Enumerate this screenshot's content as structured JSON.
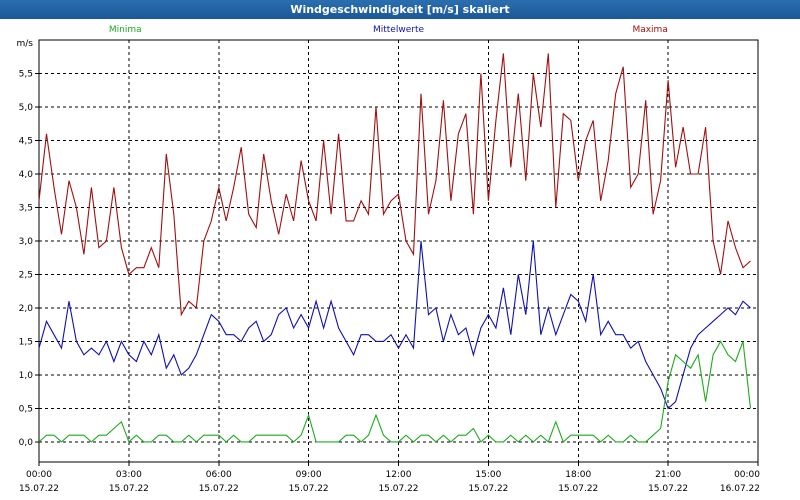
{
  "window": {
    "title": "Windgeschwindigkeit [m/s] skaliert"
  },
  "colors": {
    "min": "#1faa1f",
    "avg": "#1010b0",
    "max": "#a01010",
    "grid": "#000000"
  },
  "chart_data": {
    "type": "line",
    "title": "Windgeschwindigkeit [m/s] skaliert",
    "ylabel": "m/s",
    "xlabel": "",
    "ylim": [
      -0.3,
      6.0
    ],
    "yticks": [
      "0,0",
      "0,5",
      "1,0",
      "1,5",
      "2,0",
      "2,5",
      "3,0",
      "3,5",
      "4,0",
      "4,5",
      "5,0",
      "5,5"
    ],
    "ytick_values": [
      0,
      0.5,
      1,
      1.5,
      2,
      2.5,
      3,
      3.5,
      4,
      4.5,
      5,
      5.5
    ],
    "xlim_hours": [
      0,
      24
    ],
    "xticks": [
      {
        "time": "00:00",
        "date": "15.07.22"
      },
      {
        "time": "03:00",
        "date": "15.07.22"
      },
      {
        "time": "06:00",
        "date": "15.07.22"
      },
      {
        "time": "09:00",
        "date": "15.07.22"
      },
      {
        "time": "12:00",
        "date": "15.07.22"
      },
      {
        "time": "15:00",
        "date": "15.07.22"
      },
      {
        "time": "18:00",
        "date": "15.07.22"
      },
      {
        "time": "21:00",
        "date": "15.07.22"
      },
      {
        "time": "00:00",
        "date": "16.07.22"
      }
    ],
    "grid": true,
    "legend": [
      "Minima",
      "Mittelwerte",
      "Maxima"
    ],
    "series": [
      {
        "name": "Maxima",
        "key": "max",
        "points": [
          [
            0,
            3.6
          ],
          [
            0.25,
            4.6
          ],
          [
            0.5,
            3.8
          ],
          [
            0.75,
            3.1
          ],
          [
            1,
            3.9
          ],
          [
            1.25,
            3.5
          ],
          [
            1.5,
            2.8
          ],
          [
            1.75,
            3.8
          ],
          [
            2,
            2.9
          ],
          [
            2.25,
            3.0
          ],
          [
            2.5,
            3.8
          ],
          [
            2.75,
            2.9
          ],
          [
            3,
            2.5
          ],
          [
            3.25,
            2.6
          ],
          [
            3.5,
            2.6
          ],
          [
            3.75,
            2.9
          ],
          [
            4,
            2.6
          ],
          [
            4.25,
            4.3
          ],
          [
            4.5,
            3.4
          ],
          [
            4.75,
            1.9
          ],
          [
            5,
            2.1
          ],
          [
            5.25,
            2.0
          ],
          [
            5.5,
            3.0
          ],
          [
            5.75,
            3.3
          ],
          [
            6,
            3.8
          ],
          [
            6.25,
            3.3
          ],
          [
            6.5,
            3.8
          ],
          [
            6.75,
            4.4
          ],
          [
            7,
            3.4
          ],
          [
            7.25,
            3.2
          ],
          [
            7.5,
            4.3
          ],
          [
            7.75,
            3.6
          ],
          [
            8,
            3.1
          ],
          [
            8.25,
            3.7
          ],
          [
            8.5,
            3.3
          ],
          [
            8.75,
            4.2
          ],
          [
            9,
            3.6
          ],
          [
            9.25,
            3.3
          ],
          [
            9.5,
            4.5
          ],
          [
            9.75,
            3.4
          ],
          [
            10,
            4.6
          ],
          [
            10.25,
            3.3
          ],
          [
            10.5,
            3.3
          ],
          [
            10.75,
            3.6
          ],
          [
            11,
            3.4
          ],
          [
            11.25,
            5.0
          ],
          [
            11.5,
            3.4
          ],
          [
            11.75,
            3.6
          ],
          [
            12,
            3.7
          ],
          [
            12.25,
            3.0
          ],
          [
            12.5,
            2.8
          ],
          [
            12.75,
            5.2
          ],
          [
            13,
            3.4
          ],
          [
            13.25,
            3.9
          ],
          [
            13.5,
            5.1
          ],
          [
            13.75,
            3.6
          ],
          [
            14,
            4.6
          ],
          [
            14.25,
            4.9
          ],
          [
            14.5,
            3.4
          ],
          [
            14.75,
            5.5
          ],
          [
            15,
            3.6
          ],
          [
            15.25,
            4.8
          ],
          [
            15.5,
            5.8
          ],
          [
            15.75,
            4.1
          ],
          [
            16,
            5.2
          ],
          [
            16.25,
            3.9
          ],
          [
            16.5,
            5.5
          ],
          [
            16.75,
            4.7
          ],
          [
            17,
            5.8
          ],
          [
            17.25,
            3.5
          ],
          [
            17.5,
            4.9
          ],
          [
            17.75,
            4.8
          ],
          [
            18,
            3.9
          ],
          [
            18.25,
            4.5
          ],
          [
            18.5,
            4.8
          ],
          [
            18.75,
            3.6
          ],
          [
            19,
            4.2
          ],
          [
            19.25,
            5.2
          ],
          [
            19.5,
            5.6
          ],
          [
            19.75,
            3.8
          ],
          [
            20,
            4.0
          ],
          [
            20.25,
            5.1
          ],
          [
            20.5,
            3.4
          ],
          [
            20.75,
            3.9
          ],
          [
            21,
            5.4
          ],
          [
            21.25,
            4.1
          ],
          [
            21.5,
            4.7
          ],
          [
            21.75,
            4.0
          ],
          [
            22,
            4.0
          ],
          [
            22.25,
            4.7
          ],
          [
            22.5,
            3.0
          ],
          [
            22.75,
            2.5
          ],
          [
            23,
            3.3
          ],
          [
            23.25,
            2.9
          ],
          [
            23.5,
            2.6
          ],
          [
            23.75,
            2.7
          ]
        ]
      },
      {
        "name": "Mittelwerte",
        "key": "avg",
        "points": [
          [
            0,
            1.4
          ],
          [
            0.25,
            1.8
          ],
          [
            0.5,
            1.6
          ],
          [
            0.75,
            1.4
          ],
          [
            1,
            2.1
          ],
          [
            1.25,
            1.5
          ],
          [
            1.5,
            1.3
          ],
          [
            1.75,
            1.4
          ],
          [
            2,
            1.3
          ],
          [
            2.25,
            1.5
          ],
          [
            2.5,
            1.2
          ],
          [
            2.75,
            1.5
          ],
          [
            3,
            1.3
          ],
          [
            3.25,
            1.2
          ],
          [
            3.5,
            1.5
          ],
          [
            3.75,
            1.3
          ],
          [
            4,
            1.6
          ],
          [
            4.25,
            1.1
          ],
          [
            4.5,
            1.3
          ],
          [
            4.75,
            1.0
          ],
          [
            5,
            1.1
          ],
          [
            5.25,
            1.3
          ],
          [
            5.5,
            1.6
          ],
          [
            5.75,
            1.9
          ],
          [
            6,
            1.8
          ],
          [
            6.25,
            1.6
          ],
          [
            6.5,
            1.6
          ],
          [
            6.75,
            1.5
          ],
          [
            7,
            1.7
          ],
          [
            7.25,
            1.8
          ],
          [
            7.5,
            1.5
          ],
          [
            7.75,
            1.6
          ],
          [
            8,
            1.9
          ],
          [
            8.25,
            2.0
          ],
          [
            8.5,
            1.7
          ],
          [
            8.75,
            1.9
          ],
          [
            9,
            1.7
          ],
          [
            9.25,
            2.1
          ],
          [
            9.5,
            1.7
          ],
          [
            9.75,
            2.1
          ],
          [
            10,
            1.7
          ],
          [
            10.25,
            1.5
          ],
          [
            10.5,
            1.3
          ],
          [
            10.75,
            1.6
          ],
          [
            11,
            1.6
          ],
          [
            11.25,
            1.5
          ],
          [
            11.5,
            1.5
          ],
          [
            11.75,
            1.6
          ],
          [
            12,
            1.4
          ],
          [
            12.25,
            1.6
          ],
          [
            12.5,
            1.4
          ],
          [
            12.75,
            3.0
          ],
          [
            13,
            1.9
          ],
          [
            13.25,
            2.0
          ],
          [
            13.5,
            1.5
          ],
          [
            13.75,
            1.9
          ],
          [
            14,
            1.6
          ],
          [
            14.25,
            1.7
          ],
          [
            14.5,
            1.3
          ],
          [
            14.75,
            1.7
          ],
          [
            15,
            1.9
          ],
          [
            15.25,
            1.7
          ],
          [
            15.5,
            2.3
          ],
          [
            15.75,
            1.6
          ],
          [
            16,
            2.5
          ],
          [
            16.25,
            1.9
          ],
          [
            16.5,
            3.0
          ],
          [
            16.75,
            1.6
          ],
          [
            17,
            2.0
          ],
          [
            17.25,
            1.6
          ],
          [
            17.5,
            1.9
          ],
          [
            17.75,
            2.2
          ],
          [
            18,
            2.1
          ],
          [
            18.25,
            1.8
          ],
          [
            18.5,
            2.5
          ],
          [
            18.75,
            1.6
          ],
          [
            19,
            1.8
          ],
          [
            19.25,
            1.6
          ],
          [
            19.5,
            1.6
          ],
          [
            19.75,
            1.4
          ],
          [
            20,
            1.5
          ],
          [
            20.25,
            1.2
          ],
          [
            20.5,
            1.0
          ],
          [
            20.75,
            0.8
          ],
          [
            21,
            0.5
          ],
          [
            21.25,
            0.6
          ],
          [
            21.5,
            1.0
          ],
          [
            21.75,
            1.4
          ],
          [
            22,
            1.6
          ],
          [
            22.25,
            1.7
          ],
          [
            22.5,
            1.8
          ],
          [
            22.75,
            1.9
          ],
          [
            23,
            2.0
          ],
          [
            23.25,
            1.9
          ],
          [
            23.5,
            2.1
          ],
          [
            23.75,
            2.0
          ]
        ]
      },
      {
        "name": "Minima",
        "key": "min",
        "points": [
          [
            0,
            0.0
          ],
          [
            0.25,
            0.1
          ],
          [
            0.5,
            0.1
          ],
          [
            0.75,
            0.0
          ],
          [
            1,
            0.1
          ],
          [
            1.25,
            0.1
          ],
          [
            1.5,
            0.1
          ],
          [
            1.75,
            0.0
          ],
          [
            2,
            0.1
          ],
          [
            2.25,
            0.1
          ],
          [
            2.5,
            0.2
          ],
          [
            2.75,
            0.3
          ],
          [
            3,
            0.0
          ],
          [
            3.25,
            0.1
          ],
          [
            3.5,
            0.0
          ],
          [
            3.75,
            0.0
          ],
          [
            4,
            0.1
          ],
          [
            4.25,
            0.1
          ],
          [
            4.5,
            0.0
          ],
          [
            4.75,
            0.0
          ],
          [
            5,
            0.1
          ],
          [
            5.25,
            0.0
          ],
          [
            5.5,
            0.1
          ],
          [
            5.75,
            0.1
          ],
          [
            6,
            0.1
          ],
          [
            6.25,
            0.0
          ],
          [
            6.5,
            0.1
          ],
          [
            6.75,
            0.0
          ],
          [
            7,
            0.0
          ],
          [
            7.25,
            0.1
          ],
          [
            7.5,
            0.1
          ],
          [
            7.75,
            0.1
          ],
          [
            8,
            0.1
          ],
          [
            8.25,
            0.1
          ],
          [
            8.5,
            0.0
          ],
          [
            8.75,
            0.1
          ],
          [
            9,
            0.4
          ],
          [
            9.25,
            0.0
          ],
          [
            9.5,
            0.0
          ],
          [
            9.75,
            0.0
          ],
          [
            10,
            0.0
          ],
          [
            10.25,
            0.1
          ],
          [
            10.5,
            0.1
          ],
          [
            10.75,
            0.0
          ],
          [
            11,
            0.1
          ],
          [
            11.25,
            0.4
          ],
          [
            11.5,
            0.1
          ],
          [
            11.75,
            0.0
          ],
          [
            12,
            0.0
          ],
          [
            12.25,
            0.1
          ],
          [
            12.5,
            0.0
          ],
          [
            12.75,
            0.1
          ],
          [
            13,
            0.1
          ],
          [
            13.25,
            0.0
          ],
          [
            13.5,
            0.1
          ],
          [
            13.75,
            0.0
          ],
          [
            14,
            0.1
          ],
          [
            14.25,
            0.1
          ],
          [
            14.5,
            0.2
          ],
          [
            14.75,
            0.0
          ],
          [
            15,
            0.1
          ],
          [
            15.25,
            0.0
          ],
          [
            15.5,
            0.0
          ],
          [
            15.75,
            0.1
          ],
          [
            16,
            0.0
          ],
          [
            16.25,
            0.1
          ],
          [
            16.5,
            0.0
          ],
          [
            16.75,
            0.1
          ],
          [
            17,
            0.0
          ],
          [
            17.25,
            0.3
          ],
          [
            17.5,
            0.0
          ],
          [
            17.75,
            0.1
          ],
          [
            18,
            0.1
          ],
          [
            18.25,
            0.1
          ],
          [
            18.5,
            0.1
          ],
          [
            18.75,
            0.0
          ],
          [
            19,
            0.1
          ],
          [
            19.25,
            0.0
          ],
          [
            19.5,
            0.0
          ],
          [
            19.75,
            0.1
          ],
          [
            20,
            0.0
          ],
          [
            20.25,
            0.0
          ],
          [
            20.5,
            0.1
          ],
          [
            20.75,
            0.2
          ],
          [
            21,
            0.9
          ],
          [
            21.25,
            1.3
          ],
          [
            21.5,
            1.2
          ],
          [
            21.75,
            1.1
          ],
          [
            22,
            1.3
          ],
          [
            22.25,
            0.6
          ],
          [
            22.5,
            1.3
          ],
          [
            22.75,
            1.5
          ],
          [
            23,
            1.3
          ],
          [
            23.25,
            1.2
          ],
          [
            23.5,
            1.5
          ],
          [
            23.75,
            0.5
          ]
        ]
      }
    ]
  }
}
